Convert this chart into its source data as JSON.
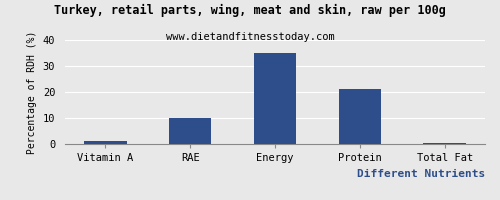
{
  "title": "Turkey, retail parts, wing, meat and skin, raw per 100g",
  "subtitle": "www.dietandfitnesstoday.com",
  "xlabel": "Different Nutrients",
  "ylabel": "Percentage of RDH (%)",
  "categories": [
    "Vitamin A",
    "RAE",
    "Energy",
    "Protein",
    "Total Fat"
  ],
  "values": [
    1,
    10,
    35,
    21,
    0.3
  ],
  "bar_color": "#2d4e8a",
  "ylim": [
    0,
    40
  ],
  "yticks": [
    0,
    10,
    20,
    30,
    40
  ],
  "background_color": "#e8e8e8",
  "title_fontsize": 8.5,
  "subtitle_fontsize": 7.5,
  "xlabel_fontsize": 8,
  "ylabel_fontsize": 7,
  "tick_fontsize": 7.5,
  "grid_color": "#ffffff"
}
